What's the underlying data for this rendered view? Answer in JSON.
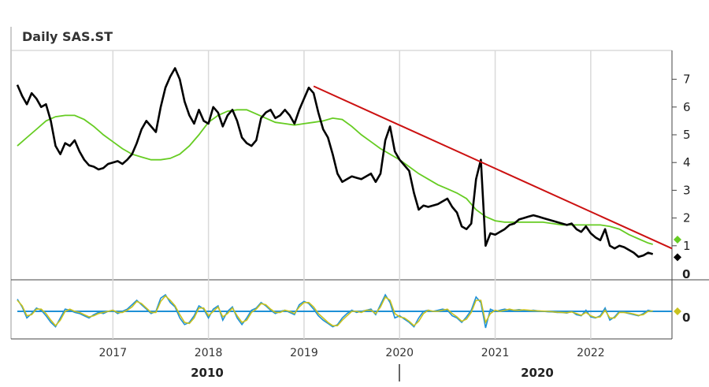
{
  "title": "Daily SAS.ST",
  "colors": {
    "price": "#000000",
    "moving_average": "#66cc22",
    "trendline": "#cc1111",
    "oscillator_line1": "#1e90d6",
    "oscillator_line2": "#c9c21e",
    "grid": "#d9d9d9",
    "frame": "#888888"
  },
  "chart_data": [
    {
      "type": "line",
      "title": "Daily SAS.ST",
      "x_ticks": [
        "2017",
        "2018",
        "2019",
        "2020",
        "2021",
        "2022"
      ],
      "decade_labels": [
        "2010",
        "2020"
      ],
      "y_ticks": [
        7,
        6,
        5,
        4,
        3,
        2,
        1
      ],
      "ylim": [
        0,
        8
      ],
      "xlim": [
        2016.0,
        2022.85
      ],
      "grid": true,
      "series": [
        {
          "role": "price",
          "x": [
            2016.0,
            2016.05,
            2016.1,
            2016.15,
            2016.2,
            2016.25,
            2016.3,
            2016.35,
            2016.4,
            2016.45,
            2016.5,
            2016.55,
            2016.6,
            2016.65,
            2016.7,
            2016.75,
            2016.8,
            2016.85,
            2016.9,
            2016.95,
            2017.0,
            2017.05,
            2017.1,
            2017.15,
            2017.2,
            2017.25,
            2017.3,
            2017.35,
            2017.4,
            2017.45,
            2017.5,
            2017.55,
            2017.6,
            2017.65,
            2017.7,
            2017.75,
            2017.8,
            2017.85,
            2017.9,
            2017.95,
            2018.0,
            2018.05,
            2018.1,
            2018.15,
            2018.2,
            2018.25,
            2018.3,
            2018.35,
            2018.4,
            2018.45,
            2018.5,
            2018.55,
            2018.6,
            2018.65,
            2018.7,
            2018.75,
            2018.8,
            2018.85,
            2018.9,
            2018.95,
            2019.0,
            2019.05,
            2019.1,
            2019.15,
            2019.2,
            2019.25,
            2019.3,
            2019.35,
            2019.4,
            2019.45,
            2019.5,
            2019.55,
            2019.6,
            2019.65,
            2019.7,
            2019.75,
            2019.8,
            2019.85,
            2019.9,
            2019.95,
            2020.0,
            2020.05,
            2020.1,
            2020.15,
            2020.2,
            2020.25,
            2020.3,
            2020.35,
            2020.4,
            2020.45,
            2020.5,
            2020.55,
            2020.6,
            2020.65,
            2020.7,
            2020.75,
            2020.8,
            2020.85,
            2020.9,
            2020.95,
            2021.0,
            2021.05,
            2021.1,
            2021.15,
            2021.2,
            2021.25,
            2021.3,
            2021.35,
            2021.4,
            2021.45,
            2021.5,
            2021.55,
            2021.6,
            2021.65,
            2021.7,
            2021.75,
            2021.8,
            2021.85,
            2021.9,
            2021.95,
            2022.0,
            2022.05,
            2022.1,
            2022.15,
            2022.2,
            2022.25,
            2022.3,
            2022.35,
            2022.4,
            2022.45,
            2022.5,
            2022.55,
            2022.6,
            2022.65
          ],
          "y": [
            6.8,
            6.4,
            6.1,
            6.5,
            6.3,
            6.0,
            6.1,
            5.5,
            4.6,
            4.3,
            4.7,
            4.6,
            4.8,
            4.4,
            4.1,
            3.9,
            3.85,
            3.75,
            3.8,
            3.95,
            4.0,
            4.05,
            3.95,
            4.1,
            4.3,
            4.7,
            5.2,
            5.5,
            5.3,
            5.1,
            6.0,
            6.7,
            7.1,
            7.4,
            7.0,
            6.2,
            5.7,
            5.4,
            5.9,
            5.5,
            5.4,
            6.0,
            5.8,
            5.3,
            5.7,
            5.9,
            5.5,
            4.9,
            4.7,
            4.6,
            4.8,
            5.6,
            5.8,
            5.9,
            5.6,
            5.7,
            5.9,
            5.7,
            5.4,
            5.9,
            6.3,
            6.7,
            6.5,
            5.8,
            5.2,
            4.9,
            4.3,
            3.6,
            3.3,
            3.4,
            3.5,
            3.45,
            3.4,
            3.5,
            3.6,
            3.3,
            3.6,
            4.8,
            5.3,
            4.4,
            4.1,
            3.9,
            3.7,
            2.9,
            2.3,
            2.45,
            2.4,
            2.45,
            2.5,
            2.6,
            2.7,
            2.4,
            2.2,
            1.7,
            1.6,
            1.8,
            3.4,
            4.1,
            1.0,
            1.45,
            1.4,
            1.5,
            1.6,
            1.75,
            1.8,
            1.95,
            2.0,
            2.05,
            2.1,
            2.05,
            2.0,
            1.95,
            1.9,
            1.85,
            1.8,
            1.75,
            1.8,
            1.6,
            1.5,
            1.7,
            1.45,
            1.3,
            1.2,
            1.6,
            1.0,
            0.9,
            1.0,
            0.95,
            0.85,
            0.75,
            0.6,
            0.65,
            0.75,
            0.7
          ]
        },
        {
          "role": "moving_average",
          "x": [
            2016.0,
            2016.1,
            2016.2,
            2016.3,
            2016.4,
            2016.5,
            2016.6,
            2016.7,
            2016.8,
            2016.9,
            2017.0,
            2017.1,
            2017.2,
            2017.3,
            2017.4,
            2017.5,
            2017.6,
            2017.7,
            2017.8,
            2017.9,
            2018.0,
            2018.1,
            2018.2,
            2018.3,
            2018.4,
            2018.5,
            2018.6,
            2018.7,
            2018.8,
            2018.9,
            2019.0,
            2019.1,
            2019.2,
            2019.3,
            2019.4,
            2019.5,
            2019.6,
            2019.7,
            2019.8,
            2019.9,
            2020.0,
            2020.1,
            2020.2,
            2020.3,
            2020.4,
            2020.5,
            2020.6,
            2020.7,
            2020.8,
            2020.9,
            2021.0,
            2021.1,
            2021.2,
            2021.3,
            2021.4,
            2021.5,
            2021.6,
            2021.7,
            2021.8,
            2021.9,
            2022.0,
            2022.1,
            2022.2,
            2022.3,
            2022.4,
            2022.5,
            2022.6,
            2022.65
          ],
          "y": [
            4.6,
            4.9,
            5.2,
            5.5,
            5.65,
            5.7,
            5.7,
            5.55,
            5.3,
            5.0,
            4.75,
            4.5,
            4.3,
            4.2,
            4.1,
            4.1,
            4.15,
            4.3,
            4.6,
            5.0,
            5.45,
            5.7,
            5.85,
            5.9,
            5.9,
            5.75,
            5.6,
            5.45,
            5.4,
            5.35,
            5.4,
            5.45,
            5.5,
            5.6,
            5.55,
            5.3,
            5.0,
            4.75,
            4.5,
            4.3,
            4.1,
            3.85,
            3.6,
            3.4,
            3.2,
            3.05,
            2.9,
            2.7,
            2.3,
            2.05,
            1.9,
            1.85,
            1.85,
            1.85,
            1.85,
            1.85,
            1.8,
            1.75,
            1.75,
            1.75,
            1.75,
            1.75,
            1.7,
            1.6,
            1.4,
            1.25,
            1.1,
            1.05
          ]
        },
        {
          "role": "trendline",
          "x": [
            2019.1,
            2022.85
          ],
          "y": [
            6.75,
            0.9
          ]
        }
      ],
      "markers": [
        {
          "series": "moving_average",
          "value": 1.05,
          "shape": "diamond"
        },
        {
          "series": "price",
          "value": 0.7,
          "shape": "diamond"
        }
      ],
      "zero_label": "0"
    },
    {
      "type": "line",
      "role": "oscillator",
      "ylim": [
        -1,
        1
      ],
      "reference_line": 0,
      "zero_label": "0",
      "x": [
        2016.0,
        2016.05,
        2016.1,
        2016.15,
        2016.2,
        2016.25,
        2016.3,
        2016.35,
        2016.4,
        2016.45,
        2016.5,
        2016.55,
        2016.6,
        2016.65,
        2016.7,
        2016.75,
        2016.8,
        2016.85,
        2016.9,
        2016.95,
        2017.0,
        2017.05,
        2017.1,
        2017.15,
        2017.2,
        2017.25,
        2017.3,
        2017.35,
        2017.4,
        2017.45,
        2017.5,
        2017.55,
        2017.6,
        2017.65,
        2017.7,
        2017.75,
        2017.8,
        2017.85,
        2017.9,
        2017.95,
        2018.0,
        2018.05,
        2018.1,
        2018.15,
        2018.2,
        2018.25,
        2018.3,
        2018.35,
        2018.4,
        2018.45,
        2018.5,
        2018.55,
        2018.6,
        2018.65,
        2018.7,
        2018.75,
        2018.8,
        2018.85,
        2018.9,
        2018.95,
        2019.0,
        2019.05,
        2019.1,
        2019.15,
        2019.2,
        2019.25,
        2019.3,
        2019.35,
        2019.4,
        2019.45,
        2019.5,
        2019.55,
        2019.6,
        2019.65,
        2019.7,
        2019.75,
        2019.8,
        2019.85,
        2019.9,
        2019.95,
        2020.0,
        2020.05,
        2020.1,
        2020.15,
        2020.2,
        2020.25,
        2020.3,
        2020.35,
        2020.4,
        2020.45,
        2020.5,
        2020.55,
        2020.6,
        2020.65,
        2020.7,
        2020.75,
        2020.8,
        2020.85,
        2020.9,
        2020.95,
        2021.0,
        2021.05,
        2021.1,
        2021.15,
        2021.2,
        2021.25,
        2021.3,
        2021.35,
        2021.4,
        2021.45,
        2021.5,
        2021.55,
        2021.6,
        2021.65,
        2021.7,
        2021.75,
        2021.8,
        2021.85,
        2021.9,
        2021.95,
        2022.0,
        2022.05,
        2022.1,
        2022.15,
        2022.2,
        2022.25,
        2022.3,
        2022.35,
        2022.4,
        2022.45,
        2022.5,
        2022.55,
        2022.6,
        2022.65
      ],
      "series": [
        {
          "role": "oscillator_line1",
          "values": [
            0.55,
            0.2,
            -0.3,
            -0.1,
            0.15,
            0.05,
            -0.2,
            -0.5,
            -0.7,
            -0.3,
            0.1,
            0.05,
            -0.05,
            -0.1,
            -0.2,
            -0.3,
            -0.15,
            -0.05,
            -0.1,
            0.0,
            0.05,
            -0.1,
            0.0,
            0.1,
            0.3,
            0.5,
            0.3,
            0.1,
            -0.1,
            0.0,
            0.6,
            0.75,
            0.4,
            0.2,
            -0.3,
            -0.6,
            -0.5,
            -0.2,
            0.25,
            0.1,
            -0.3,
            0.1,
            0.25,
            -0.4,
            0.0,
            0.2,
            -0.3,
            -0.6,
            -0.3,
            0.05,
            0.15,
            0.4,
            0.25,
            0.05,
            -0.1,
            0.0,
            0.05,
            -0.05,
            -0.15,
            0.3,
            0.45,
            0.35,
            0.1,
            -0.2,
            -0.4,
            -0.55,
            -0.7,
            -0.6,
            -0.3,
            -0.1,
            0.05,
            -0.05,
            0.0,
            0.05,
            0.1,
            -0.15,
            0.3,
            0.75,
            0.4,
            -0.3,
            -0.2,
            -0.35,
            -0.5,
            -0.7,
            -0.3,
            0.0,
            0.05,
            0.0,
            0.05,
            0.1,
            0.05,
            -0.2,
            -0.3,
            -0.5,
            -0.25,
            0.05,
            0.65,
            0.4,
            -0.75,
            0.1,
            0.0,
            0.05,
            0.1,
            0.05,
            0.05,
            0.08,
            0.05,
            0.03,
            0.05,
            0.02,
            0.0,
            -0.02,
            -0.03,
            -0.05,
            -0.05,
            -0.08,
            0.0,
            -0.15,
            -0.2,
            0.05,
            -0.25,
            -0.3,
            -0.2,
            0.15,
            -0.4,
            -0.25,
            0.0,
            -0.05,
            -0.1,
            -0.15,
            -0.2,
            -0.1,
            0.05,
            0.0
          ]
        },
        {
          "role": "oscillator_line2",
          "values": [
            0.5,
            0.25,
            -0.2,
            -0.15,
            0.1,
            0.1,
            -0.1,
            -0.4,
            -0.65,
            -0.4,
            0.0,
            0.1,
            0.0,
            -0.05,
            -0.15,
            -0.25,
            -0.2,
            -0.1,
            -0.05,
            0.0,
            0.05,
            -0.05,
            -0.05,
            0.05,
            0.2,
            0.45,
            0.35,
            0.15,
            -0.05,
            -0.05,
            0.45,
            0.7,
            0.5,
            0.25,
            -0.15,
            -0.5,
            -0.55,
            -0.3,
            0.15,
            0.15,
            -0.2,
            0.0,
            0.2,
            -0.25,
            -0.1,
            0.15,
            -0.2,
            -0.5,
            -0.4,
            -0.05,
            0.1,
            0.35,
            0.3,
            0.1,
            -0.05,
            -0.05,
            0.05,
            0.0,
            -0.1,
            0.2,
            0.4,
            0.4,
            0.2,
            -0.1,
            -0.3,
            -0.5,
            -0.65,
            -0.65,
            -0.4,
            -0.2,
            0.0,
            0.0,
            -0.05,
            0.05,
            0.05,
            -0.1,
            0.2,
            0.65,
            0.5,
            -0.1,
            -0.25,
            -0.3,
            -0.45,
            -0.65,
            -0.45,
            -0.1,
            0.05,
            0.0,
            0.0,
            0.05,
            0.1,
            -0.1,
            -0.25,
            -0.45,
            -0.35,
            -0.05,
            0.5,
            0.5,
            -0.5,
            -0.1,
            0.05,
            0.0,
            0.05,
            0.1,
            0.05,
            0.05,
            0.07,
            0.05,
            0.03,
            0.02,
            0.01,
            0.0,
            -0.02,
            -0.04,
            -0.05,
            -0.06,
            -0.03,
            -0.1,
            -0.18,
            -0.05,
            -0.2,
            -0.28,
            -0.25,
            0.05,
            -0.3,
            -0.3,
            -0.05,
            -0.05,
            -0.08,
            -0.12,
            -0.18,
            -0.15,
            0.0,
            0.02
          ]
        }
      ],
      "markers": [
        {
          "series": "oscillator_line2",
          "value": 0.0,
          "shape": "diamond"
        }
      ]
    }
  ]
}
